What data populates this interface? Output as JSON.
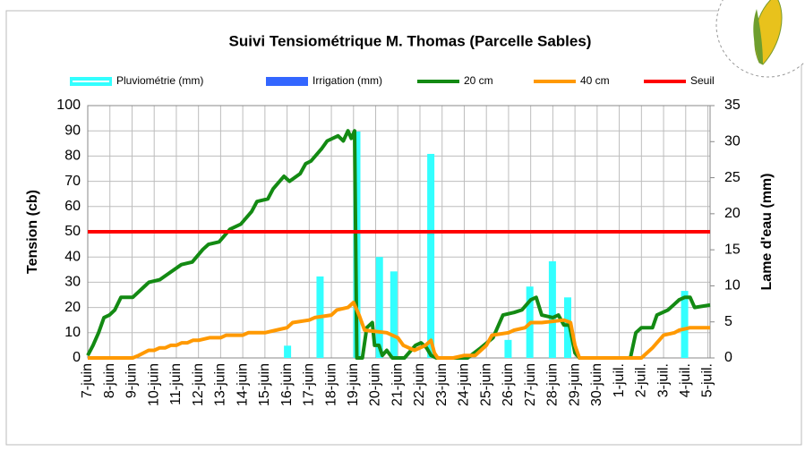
{
  "chart_data": {
    "type": "combo",
    "title": "Suivi Tensiométrique M. Thomas (Parcelle Sables)",
    "y_label": "Tension (cb)",
    "y2_label": "Lame d'eau (mm)",
    "xlim": [
      0,
      28.1
    ],
    "xticks": [
      {
        "value": 0,
        "label": "7-juin"
      },
      {
        "value": 1,
        "label": "8-juin"
      },
      {
        "value": 2,
        "label": "9-juin"
      },
      {
        "value": 3,
        "label": "10-juin"
      },
      {
        "value": 4,
        "label": "11-juin"
      },
      {
        "value": 5,
        "label": "12-juin"
      },
      {
        "value": 6,
        "label": "13-juin"
      },
      {
        "value": 7,
        "label": "14-juin"
      },
      {
        "value": 8,
        "label": "15-juin"
      },
      {
        "value": 9,
        "label": "16-juin"
      },
      {
        "value": 10,
        "label": "17-juin"
      },
      {
        "value": 11,
        "label": "18-juin"
      },
      {
        "value": 12,
        "label": "19-juin"
      },
      {
        "value": 13,
        "label": "20-juin"
      },
      {
        "value": 14,
        "label": "21-juin"
      },
      {
        "value": 15,
        "label": "22-juin"
      },
      {
        "value": 16,
        "label": "23-juin"
      },
      {
        "value": 17,
        "label": "24-juin"
      },
      {
        "value": 18,
        "label": "25-juin"
      },
      {
        "value": 19,
        "label": "26-juin"
      },
      {
        "value": 20,
        "label": "27-juin"
      },
      {
        "value": 21,
        "label": "28-juin"
      },
      {
        "value": 22,
        "label": "29-juin"
      },
      {
        "value": 23,
        "label": "30-juin"
      },
      {
        "value": 24,
        "label": "1-juil."
      },
      {
        "value": 25,
        "label": "2-juil."
      },
      {
        "value": 26,
        "label": "3-juil."
      },
      {
        "value": 27,
        "label": "4-juil."
      },
      {
        "value": 28,
        "label": "5-juil."
      }
    ],
    "ylim": [
      0,
      100
    ],
    "yticks": [
      0,
      10,
      20,
      30,
      40,
      50,
      60,
      70,
      80,
      90,
      100
    ],
    "y2lim": [
      0,
      35
    ],
    "y2ticks": [
      0,
      5,
      10,
      15,
      20,
      25,
      30,
      35
    ],
    "grid": true,
    "series": [
      {
        "name": "Pluviométrie (mm)",
        "type": "bar",
        "axis": "y2",
        "color": "#33ffff",
        "x": [
          9.02,
          10.49,
          12.15,
          13.17,
          13.82,
          15.49,
          18.98,
          19.96,
          20.98,
          21.67,
          26.95
        ],
        "values": [
          1.7,
          11.3,
          31.4,
          14,
          12,
          28.3,
          2.5,
          9.9,
          13.4,
          8.4,
          9.3
        ]
      },
      {
        "name": "Irrigation (mm)",
        "type": "bar",
        "axis": "y2",
        "color": "#3366ff",
        "x": [],
        "values": []
      },
      {
        "name": "20 cm",
        "type": "line",
        "color": "#138a13",
        "x": [
          0,
          0.24,
          0.49,
          0.73,
          0.98,
          1.22,
          1.5,
          2.03,
          2.52,
          2.76,
          3.25,
          3.74,
          4.23,
          4.72,
          5.2,
          5.45,
          5.93,
          6.42,
          6.91,
          7.4,
          7.64,
          8.13,
          8.37,
          8.86,
          9.11,
          9.59,
          9.84,
          10.08,
          10.57,
          10.81,
          11.3,
          11.54,
          11.75,
          11.9,
          12.05,
          12.15,
          12.4,
          12.6,
          12.85,
          12.95,
          13.15,
          13.3,
          13.5,
          13.75,
          14.3,
          14.8,
          15.05,
          15.3,
          15.5,
          15.75,
          17.15,
          17.75,
          18.3,
          18.75,
          19.25,
          19.6,
          20,
          20.25,
          20.5,
          21,
          21.25,
          21.5,
          21.75,
          22,
          22.2,
          24.5,
          24.75,
          25,
          25.5,
          25.7,
          26.2,
          26.45,
          26.7,
          26.95,
          27.2,
          27.4,
          28.1
        ],
        "values": [
          1,
          5,
          10,
          16,
          17,
          19,
          24,
          24,
          28,
          30,
          31,
          34,
          37,
          38,
          43,
          45,
          46,
          51,
          53,
          58,
          62,
          63,
          67,
          72,
          70,
          73,
          77,
          78,
          83,
          86,
          88,
          86,
          90,
          87,
          90,
          0,
          0,
          12,
          14,
          5,
          5,
          1,
          3,
          0,
          0,
          5,
          6,
          4,
          1,
          0,
          0,
          4,
          8,
          17,
          18,
          19,
          23,
          24,
          17,
          16,
          17,
          13,
          13,
          2,
          0,
          0,
          10,
          12,
          12,
          17,
          19,
          21,
          23,
          24,
          24,
          20,
          21
        ]
      },
      {
        "name": "40 cm",
        "type": "line",
        "color": "#ff9900",
        "x": [
          0,
          2.03,
          2.3,
          2.75,
          3,
          3.25,
          3.5,
          3.75,
          4,
          4.25,
          4.5,
          4.75,
          5,
          5.5,
          6,
          6.25,
          7,
          7.25,
          8,
          8.5,
          9,
          9.25,
          10,
          10.25,
          11,
          11.25,
          11.75,
          12,
          12.25,
          12.5,
          13.5,
          14,
          14.25,
          14.75,
          15.25,
          15.5,
          15.65,
          15.8,
          16.5,
          17,
          17.5,
          18,
          18.25,
          19,
          19.25,
          19.75,
          20,
          20.5,
          21.5,
          21.8,
          22,
          22.2,
          25,
          25.25,
          25.5,
          26,
          26.5,
          26.7,
          27.2,
          28.1
        ],
        "values": [
          0,
          0,
          1,
          3,
          3,
          4,
          4,
          5,
          5,
          6,
          6,
          7,
          7,
          8,
          8,
          9,
          9,
          10,
          10,
          11,
          12,
          14,
          15,
          16,
          17,
          19,
          20,
          22,
          17,
          11,
          10,
          8,
          5,
          3,
          5,
          7,
          2,
          0,
          0,
          1,
          1,
          5,
          9,
          10,
          11,
          12,
          14,
          14,
          15,
          14,
          5,
          0,
          0,
          2,
          4,
          9,
          10,
          11,
          12,
          12
        ]
      },
      {
        "name": "Seuil",
        "type": "line",
        "color": "#ff0000",
        "x": [
          0,
          28.1
        ],
        "values": [
          50,
          50
        ]
      }
    ]
  }
}
